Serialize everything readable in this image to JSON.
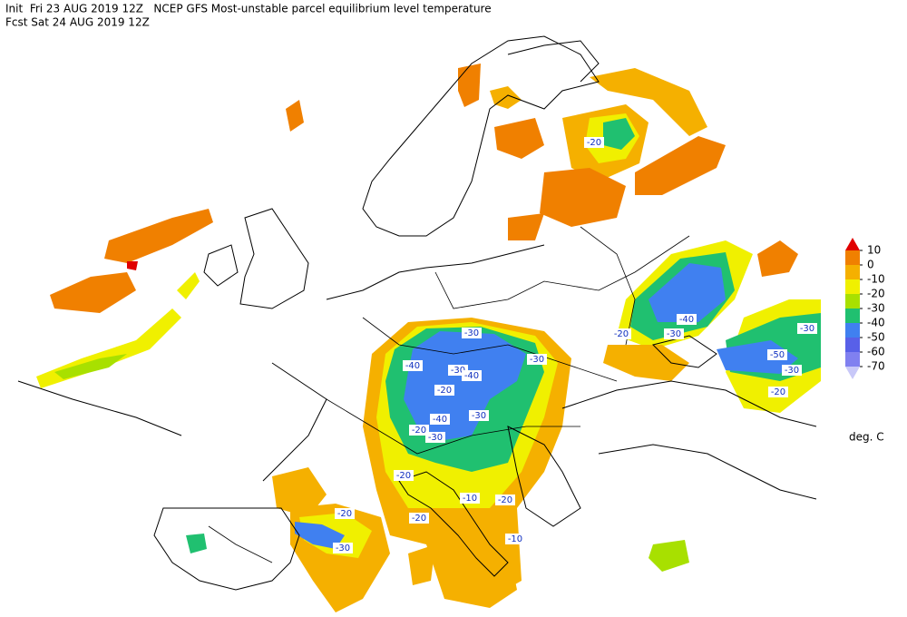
{
  "header": {
    "line1": "Init  Fri 23 AUG 2019 12Z   NCEP GFS Most-unstable parcel equilibrium level temperature",
    "line2": "Fcst Sat 24 AUG 2019 12Z"
  },
  "legend": {
    "levels": [
      10,
      0,
      -10,
      -20,
      -30,
      -40,
      -50,
      -60,
      -70
    ],
    "colors": [
      "#e00000",
      "#f08000",
      "#f5b000",
      "#f0f000",
      "#a8e000",
      "#20c070",
      "#4080f0",
      "#5860e8",
      "#8080f0",
      "#c8c8f8"
    ],
    "unit": "deg. C"
  },
  "contour_labels": [
    "-20",
    "-40",
    "-30",
    "-20",
    "-30",
    "-30",
    "-50",
    "-30",
    "-20",
    "-40",
    "-30",
    "-40",
    "-20",
    "-40",
    "-30",
    "-20",
    "-30",
    "-20",
    "-10",
    "-20",
    "-20",
    "-10",
    "-20",
    "-30",
    "-30"
  ]
}
